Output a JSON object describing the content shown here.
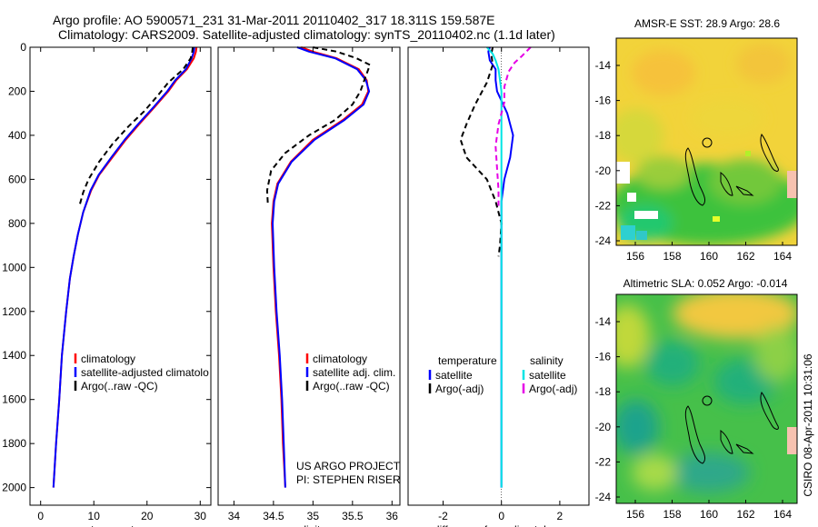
{
  "header": {
    "line1": "Argo profile: AO 5900571_231 31-Mar-2011 20110402_317 18.311S 159.587E",
    "line2": "Climatology: CARS2009. Satellite-adjusted climatology: synTS_20110402.nc (1.1d later)"
  },
  "credit": {
    "line1": "US ARGO PROJECT",
    "line2": "PI: STEPHEN RISER"
  },
  "timestamp": "CSIRO 08-Apr-2011 10:31:06",
  "chart_data": [
    {
      "type": "line",
      "xlabel": "temperature",
      "ylabel": "",
      "xlim": [
        -2,
        32
      ],
      "ylim": [
        2080,
        0
      ],
      "xticks": [
        0,
        10,
        20,
        30
      ],
      "yticks": [
        0,
        200,
        400,
        600,
        800,
        1000,
        1200,
        1400,
        1600,
        1800,
        2000
      ],
      "legend": [
        "climatology",
        "satellite-adjusted climatolo",
        "Argo(..raw -QC)"
      ],
      "series": [
        {
          "name": "climatology",
          "color": "#ff0000",
          "dash": "",
          "points": [
            [
              29.3,
              0
            ],
            [
              29.2,
              20
            ],
            [
              28.8,
              50
            ],
            [
              27.5,
              100
            ],
            [
              25.5,
              150
            ],
            [
              24,
              200
            ],
            [
              21.5,
              270
            ],
            [
              18.5,
              350
            ],
            [
              16,
              420
            ],
            [
              13.5,
              500
            ],
            [
              11,
              580
            ],
            [
              9.5,
              650
            ],
            [
              8,
              750
            ],
            [
              7,
              850
            ],
            [
              6.2,
              950
            ],
            [
              5.5,
              1050
            ],
            [
              4.8,
              1200
            ],
            [
              4,
              1400
            ],
            [
              3.5,
              1600
            ],
            [
              2.9,
              1800
            ],
            [
              2.4,
              2000
            ]
          ]
        },
        {
          "name": "satellite-adjusted climatolo",
          "color": "#0000ff",
          "dash": "",
          "points": [
            [
              28.9,
              0
            ],
            [
              28.8,
              20
            ],
            [
              28.4,
              50
            ],
            [
              27.3,
              100
            ],
            [
              25.3,
              150
            ],
            [
              23.8,
              200
            ],
            [
              21.3,
              270
            ],
            [
              18.3,
              350
            ],
            [
              15.8,
              420
            ],
            [
              13.3,
              500
            ],
            [
              10.9,
              580
            ],
            [
              9.4,
              650
            ],
            [
              8,
              750
            ],
            [
              7,
              850
            ],
            [
              6.2,
              950
            ],
            [
              5.5,
              1050
            ],
            [
              4.8,
              1200
            ],
            [
              4,
              1400
            ],
            [
              3.5,
              1600
            ],
            [
              2.9,
              1800
            ],
            [
              2.4,
              2000
            ]
          ]
        },
        {
          "name": "Argo(..raw -QC)",
          "color": "#000000",
          "dash": "6 4",
          "points": [
            [
              28.6,
              0
            ],
            [
              28.5,
              20
            ],
            [
              28.2,
              50
            ],
            [
              26.8,
              100
            ],
            [
              24,
              160
            ],
            [
              22,
              220
            ],
            [
              19.5,
              290
            ],
            [
              16.5,
              360
            ],
            [
              13.5,
              440
            ],
            [
              11,
              520
            ],
            [
              9,
              600
            ],
            [
              8,
              660
            ],
            [
              7.3,
              720
            ]
          ]
        }
      ]
    },
    {
      "type": "line",
      "xlabel": "salinity",
      "ylabel": "",
      "xlim": [
        33.8,
        36.1
      ],
      "ylim": [
        2080,
        0
      ],
      "xticks": [
        34,
        34.5,
        35,
        35.5,
        36
      ],
      "yticks": [],
      "legend": [
        "climatology",
        "satellite adj. clim.",
        "Argo(..raw -QC)"
      ],
      "series": [
        {
          "name": "climatology",
          "color": "#ff0000",
          "dash": "",
          "points": [
            [
              34.85,
              0
            ],
            [
              35.0,
              20
            ],
            [
              35.3,
              50
            ],
            [
              35.58,
              100
            ],
            [
              35.68,
              150
            ],
            [
              35.7,
              200
            ],
            [
              35.62,
              260
            ],
            [
              35.38,
              330
            ],
            [
              35.0,
              420
            ],
            [
              34.72,
              520
            ],
            [
              34.55,
              620
            ],
            [
              34.5,
              700
            ],
            [
              34.48,
              800
            ],
            [
              34.5,
              1000
            ],
            [
              34.53,
              1200
            ],
            [
              34.57,
              1400
            ],
            [
              34.6,
              1600
            ],
            [
              34.62,
              1800
            ],
            [
              34.65,
              2000
            ]
          ]
        },
        {
          "name": "satellite adj. clim.",
          "color": "#0000ff",
          "dash": "",
          "points": [
            [
              34.8,
              0
            ],
            [
              34.95,
              20
            ],
            [
              35.28,
              50
            ],
            [
              35.56,
              100
            ],
            [
              35.67,
              150
            ],
            [
              35.71,
              200
            ],
            [
              35.64,
              260
            ],
            [
              35.4,
              330
            ],
            [
              35.02,
              420
            ],
            [
              34.73,
              520
            ],
            [
              34.56,
              620
            ],
            [
              34.51,
              700
            ],
            [
              34.49,
              800
            ],
            [
              34.51,
              1000
            ],
            [
              34.54,
              1200
            ],
            [
              34.58,
              1400
            ],
            [
              34.61,
              1600
            ],
            [
              34.63,
              1800
            ],
            [
              34.65,
              2000
            ]
          ]
        },
        {
          "name": "Argo(..raw -QC)",
          "color": "#000000",
          "dash": "6 4",
          "points": [
            [
              35.0,
              0
            ],
            [
              35.3,
              20
            ],
            [
              35.55,
              50
            ],
            [
              35.72,
              80
            ],
            [
              35.66,
              140
            ],
            [
              35.6,
              200
            ],
            [
              35.5,
              260
            ],
            [
              35.28,
              330
            ],
            [
              34.95,
              400
            ],
            [
              34.65,
              480
            ],
            [
              34.47,
              560
            ],
            [
              34.42,
              650
            ],
            [
              34.43,
              720
            ]
          ]
        }
      ]
    },
    {
      "type": "line",
      "xlabel": "difference from climatology",
      "ylabel": "",
      "xlim": [
        -3.2,
        3.0
      ],
      "ylim": [
        2080,
        0
      ],
      "xticks": [
        -2,
        0,
        2
      ],
      "yticks": [],
      "legend_headers": [
        "temperature",
        "salinity"
      ],
      "legend": [
        "satellite",
        "Argo(-adj)",
        "satellite",
        "Argo(-adj)"
      ],
      "series": [
        {
          "name": "temperature satellite",
          "color": "#0000ff",
          "dash": "",
          "points": [
            [
              -0.4,
              0
            ],
            [
              -0.45,
              20
            ],
            [
              -0.4,
              60
            ],
            [
              -0.2,
              100
            ],
            [
              -0.2,
              150
            ],
            [
              -0.15,
              200
            ],
            [
              0.2,
              300
            ],
            [
              0.4,
              400
            ],
            [
              0.3,
              500
            ],
            [
              0.1,
              600
            ],
            [
              0.0,
              700
            ],
            [
              0.0,
              800
            ],
            [
              0.0,
              2000
            ]
          ]
        },
        {
          "name": "temperature Argo(-adj)",
          "color": "#000000",
          "dash": "6 4",
          "points": [
            [
              -0.3,
              0
            ],
            [
              -0.35,
              30
            ],
            [
              -0.3,
              80
            ],
            [
              -0.5,
              160
            ],
            [
              -0.9,
              260
            ],
            [
              -1.2,
              350
            ],
            [
              -1.4,
              420
            ],
            [
              -1.2,
              500
            ],
            [
              -0.5,
              600
            ],
            [
              -0.2,
              700
            ],
            [
              0.0,
              800
            ],
            [
              -0.05,
              900
            ],
            [
              -0.1,
              950
            ]
          ]
        },
        {
          "name": "salinity satellite",
          "color": "#00e5e5",
          "dash": "",
          "points": [
            [
              -0.5,
              0
            ],
            [
              -0.3,
              30
            ],
            [
              -0.2,
              60
            ],
            [
              -0.1,
              100
            ],
            [
              0.0,
              200
            ],
            [
              0.0,
              500
            ],
            [
              0.0,
              1000
            ],
            [
              0.0,
              2000
            ]
          ]
        },
        {
          "name": "salinity Argo(-adj)",
          "color": "#e600e6",
          "dash": "6 4",
          "points": [
            [
              1.0,
              0
            ],
            [
              0.7,
              40
            ],
            [
              0.45,
              70
            ],
            [
              0.25,
              110
            ],
            [
              0.1,
              180
            ],
            [
              0.1,
              250
            ],
            [
              -0.1,
              350
            ],
            [
              -0.2,
              450
            ],
            [
              -0.15,
              550
            ],
            [
              -0.1,
              650
            ],
            [
              -0.1,
              720
            ]
          ]
        }
      ]
    }
  ],
  "maps": [
    {
      "title": "AMSR-E SST: 28.9 Argo: 28.6",
      "xticks": [
        "156",
        "158",
        "160",
        "162",
        "164"
      ],
      "yticks": [
        "-14",
        "-16",
        "-18",
        "-20",
        "-22",
        "-24"
      ]
    },
    {
      "title": "Altimetric SLA: 0.052 Argo: -0.014",
      "xticks": [
        "156",
        "158",
        "160",
        "162",
        "164"
      ],
      "yticks": [
        "-14",
        "-16",
        "-18",
        "-20",
        "-22",
        "-24"
      ]
    }
  ]
}
